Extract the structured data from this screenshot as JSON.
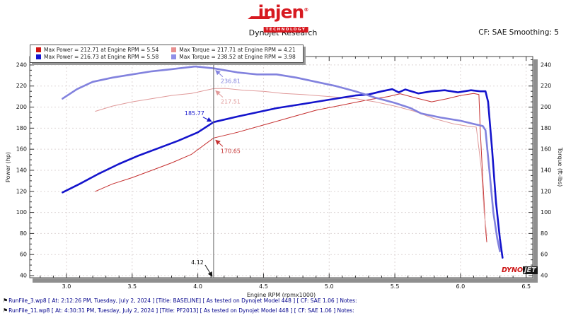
{
  "header": {
    "logo_text": "injen",
    "logo_reg": "®",
    "logo_subtext": "TECHNOLOGY",
    "title": "Dynojet Research",
    "smoothing": "CF: SAE Smoothing: 5"
  },
  "legend": {
    "entries": [
      {
        "color": "#d01414",
        "label": "Max Power = 212.71 at Engine RPM = 5.54"
      },
      {
        "color": "#e89090",
        "label": "Max Torque = 217.71 at Engine RPM = 4.21"
      },
      {
        "color": "#1414d0",
        "label": "Max Power = 216.73 at Engine RPM = 5.58"
      },
      {
        "color": "#9090e8",
        "label": "Max Torque = 238.52 at Engine RPM = 3.98"
      }
    ]
  },
  "chart_data": {
    "type": "line",
    "title": "Dynojet Research",
    "xlabel": "Engine RPM (rpmx1000)",
    "ylabel_left": "Power (hp)",
    "ylabel_right": "Torque (ft-lbs)",
    "grid": true,
    "x_axis": {
      "min": 2.72,
      "max": 6.55,
      "minor_step": 0.1,
      "major_ticks": [
        3.0,
        3.5,
        4.0,
        4.5,
        5.0,
        5.5,
        6.0,
        6.5
      ],
      "major_labels": [
        "3.0",
        "3.5",
        "4.0",
        "4.5",
        "5.0",
        "5.5",
        "6.0",
        "6.5"
      ]
    },
    "y_axis": {
      "min": 38,
      "max": 248,
      "minor_step": 5,
      "major_ticks": [
        40,
        60,
        80,
        100,
        120,
        140,
        160,
        180,
        200,
        220,
        240
      ]
    },
    "series": [
      {
        "id": "baseline-power",
        "name": "BASELINE Power",
        "color": "#c53030",
        "width": 1,
        "max": {
          "value": 212.71,
          "rpm": 5.54
        },
        "points": [
          [
            3.22,
            120
          ],
          [
            3.35,
            127
          ],
          [
            3.5,
            133
          ],
          [
            3.65,
            140
          ],
          [
            3.8,
            147
          ],
          [
            3.95,
            155
          ],
          [
            4.12,
            170.65
          ],
          [
            4.3,
            176
          ],
          [
            4.5,
            183
          ],
          [
            4.7,
            190
          ],
          [
            4.9,
            197
          ],
          [
            5.1,
            202
          ],
          [
            5.3,
            207
          ],
          [
            5.45,
            210
          ],
          [
            5.54,
            212.71
          ],
          [
            5.65,
            209
          ],
          [
            5.78,
            205
          ],
          [
            5.9,
            208
          ],
          [
            6.0,
            211
          ],
          [
            6.1,
            213
          ],
          [
            6.14,
            212
          ],
          [
            6.15,
            180
          ],
          [
            6.17,
            130
          ],
          [
            6.19,
            85
          ],
          [
            6.2,
            72
          ]
        ]
      },
      {
        "id": "baseline-torque",
        "name": "BASELINE Torque",
        "color": "#e09a9a",
        "width": 1,
        "max": {
          "value": 217.71,
          "rpm": 4.21
        },
        "points": [
          [
            3.22,
            196
          ],
          [
            3.35,
            201
          ],
          [
            3.5,
            205
          ],
          [
            3.65,
            208
          ],
          [
            3.8,
            211
          ],
          [
            3.95,
            213
          ],
          [
            4.12,
            217.51
          ],
          [
            4.21,
            217.71
          ],
          [
            4.35,
            216
          ],
          [
            4.5,
            215
          ],
          [
            4.65,
            213
          ],
          [
            4.8,
            212
          ],
          [
            5.0,
            210
          ],
          [
            5.2,
            208
          ],
          [
            5.35,
            205
          ],
          [
            5.5,
            201
          ],
          [
            5.65,
            196
          ],
          [
            5.8,
            189
          ],
          [
            5.95,
            184
          ],
          [
            6.05,
            182
          ],
          [
            6.12,
            181
          ],
          [
            6.16,
            140
          ],
          [
            6.18,
            100
          ],
          [
            6.2,
            78
          ]
        ]
      },
      {
        "id": "pf2013-power",
        "name": "PF2013 Power",
        "color": "#1414cc",
        "width": 2.6,
        "max": {
          "value": 216.73,
          "rpm": 5.58
        },
        "points": [
          [
            2.97,
            119
          ],
          [
            3.1,
            127
          ],
          [
            3.25,
            137
          ],
          [
            3.4,
            146
          ],
          [
            3.55,
            154
          ],
          [
            3.7,
            161
          ],
          [
            3.85,
            168
          ],
          [
            4.0,
            176
          ],
          [
            4.12,
            185.77
          ],
          [
            4.3,
            191
          ],
          [
            4.45,
            195
          ],
          [
            4.6,
            199
          ],
          [
            4.75,
            202
          ],
          [
            4.9,
            205
          ],
          [
            5.05,
            208
          ],
          [
            5.2,
            211
          ],
          [
            5.3,
            212
          ],
          [
            5.4,
            215
          ],
          [
            5.48,
            217
          ],
          [
            5.53,
            214
          ],
          [
            5.58,
            216.73
          ],
          [
            5.68,
            213
          ],
          [
            5.78,
            215
          ],
          [
            5.88,
            216
          ],
          [
            5.98,
            214
          ],
          [
            6.08,
            216
          ],
          [
            6.15,
            215
          ],
          [
            6.19,
            215
          ],
          [
            6.21,
            205
          ],
          [
            6.24,
            160
          ],
          [
            6.27,
            110
          ],
          [
            6.3,
            75
          ],
          [
            6.32,
            57
          ]
        ]
      },
      {
        "id": "pf2013-torque",
        "name": "PF2013 Torque",
        "color": "#8282de",
        "width": 2.6,
        "max": {
          "value": 238.52,
          "rpm": 3.98
        },
        "points": [
          [
            2.97,
            208
          ],
          [
            3.08,
            217
          ],
          [
            3.2,
            224
          ],
          [
            3.35,
            228
          ],
          [
            3.5,
            231
          ],
          [
            3.65,
            234
          ],
          [
            3.8,
            236
          ],
          [
            3.98,
            238.52
          ],
          [
            4.12,
            236.81
          ],
          [
            4.3,
            233
          ],
          [
            4.45,
            231
          ],
          [
            4.6,
            231
          ],
          [
            4.75,
            228
          ],
          [
            4.9,
            224
          ],
          [
            5.05,
            220
          ],
          [
            5.2,
            215
          ],
          [
            5.35,
            209
          ],
          [
            5.5,
            204
          ],
          [
            5.62,
            199
          ],
          [
            5.7,
            194
          ],
          [
            5.85,
            190
          ],
          [
            6.0,
            187
          ],
          [
            6.1,
            184
          ],
          [
            6.17,
            182
          ],
          [
            6.19,
            178
          ],
          [
            6.22,
            140
          ],
          [
            6.25,
            100
          ],
          [
            6.28,
            75
          ],
          [
            6.3,
            63
          ]
        ]
      }
    ],
    "cursor": {
      "x": 4.12,
      "x_label": "4.12",
      "readouts": [
        {
          "text": "236.81",
          "value": 236.81,
          "color": "#8282de",
          "side": "right"
        },
        {
          "text": "217.51",
          "value": 217.51,
          "color": "#e09a9a",
          "side": "right"
        },
        {
          "text": "185.77",
          "value": 185.77,
          "color": "#1414cc",
          "side": "left"
        },
        {
          "text": "170.65",
          "value": 170.65,
          "color": "#c53030",
          "side": "right"
        }
      ]
    },
    "watermark": {
      "dyno": "DYNO",
      "jet": "JET"
    }
  },
  "footer": {
    "runs": [
      {
        "icon": "⚑",
        "text": "RunFile_3.wp8 [ At: 2:12:26 PM, Tuesday, July 2, 2024 ] [Title: BASELINE]  [ As tested on Dynojet Model 448 ] [ CF: SAE 1.06 ] Notes:"
      },
      {
        "icon": "⚑",
        "text": "RunFile_11.wp8 [ At: 4:30:31 PM, Tuesday, July 2, 2024 ] [Title: PF2013]  [ As tested on Dynojet Model 448 ] [ CF: SAE 1.06 ] Notes:"
      }
    ]
  }
}
